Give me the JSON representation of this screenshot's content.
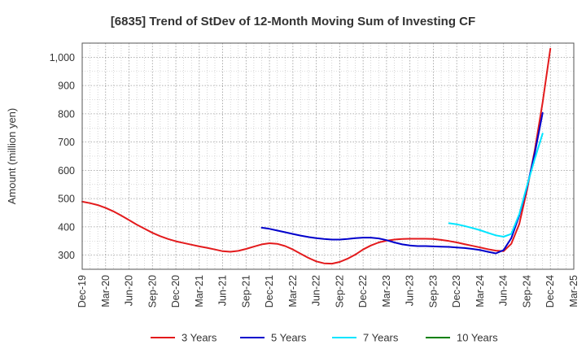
{
  "chart_data": {
    "type": "line",
    "title": "[6835]  Trend of StDev of 12-Month Moving Sum of Investing CF",
    "ylabel": "Amount (million yen)",
    "xlabel": "",
    "ylim": [
      250,
      1050
    ],
    "yticks": [
      300,
      400,
      500,
      600,
      700,
      800,
      900,
      1000
    ],
    "ytick_labels": [
      "300",
      "400",
      "500",
      "600",
      "700",
      "800",
      "900",
      "1,000"
    ],
    "categories": [
      "Dec-19",
      "Mar-20",
      "Jun-20",
      "Sep-20",
      "Dec-20",
      "Mar-21",
      "Jun-21",
      "Sep-21",
      "Dec-21",
      "Mar-22",
      "Jun-22",
      "Sep-22",
      "Dec-22",
      "Mar-23",
      "Jun-23",
      "Sep-23",
      "Dec-23",
      "Mar-24",
      "Jun-24",
      "Sep-24",
      "Dec-24",
      "Mar-25"
    ],
    "grid": true,
    "legend_position": "bottom",
    "series": [
      {
        "name": "3 Years",
        "color": "#e31a1c",
        "points": [
          [
            0,
            489
          ],
          [
            0.33,
            484
          ],
          [
            0.67,
            477
          ],
          [
            1,
            467
          ],
          [
            1.33,
            455
          ],
          [
            1.67,
            440
          ],
          [
            2,
            424
          ],
          [
            2.33,
            408
          ],
          [
            2.67,
            393
          ],
          [
            3,
            379
          ],
          [
            3.33,
            367
          ],
          [
            3.67,
            357
          ],
          [
            4,
            349
          ],
          [
            4.33,
            343
          ],
          [
            4.67,
            337
          ],
          [
            5,
            331
          ],
          [
            5.33,
            326
          ],
          [
            5.67,
            320
          ],
          [
            6,
            314
          ],
          [
            6.33,
            312
          ],
          [
            6.67,
            315
          ],
          [
            7,
            322
          ],
          [
            7.33,
            330
          ],
          [
            7.67,
            338
          ],
          [
            8,
            342
          ],
          [
            8.33,
            340
          ],
          [
            8.67,
            332
          ],
          [
            9,
            320
          ],
          [
            9.33,
            305
          ],
          [
            9.67,
            290
          ],
          [
            10,
            278
          ],
          [
            10.33,
            271
          ],
          [
            10.67,
            270
          ],
          [
            11,
            276
          ],
          [
            11.33,
            287
          ],
          [
            11.67,
            302
          ],
          [
            12,
            320
          ],
          [
            12.33,
            334
          ],
          [
            12.67,
            345
          ],
          [
            13,
            351
          ],
          [
            13.33,
            355
          ],
          [
            13.67,
            357
          ],
          [
            14,
            358
          ],
          [
            14.33,
            358
          ],
          [
            14.67,
            358
          ],
          [
            15,
            357
          ],
          [
            15.33,
            354
          ],
          [
            15.67,
            350
          ],
          [
            16,
            345
          ],
          [
            16.33,
            339
          ],
          [
            16.67,
            333
          ],
          [
            17,
            327
          ],
          [
            17.33,
            321
          ],
          [
            17.67,
            316
          ],
          [
            18,
            314
          ],
          [
            18.33,
            340
          ],
          [
            18.67,
            410
          ],
          [
            19,
            530
          ],
          [
            19.33,
            670
          ],
          [
            19.67,
            840
          ],
          [
            20,
            1030
          ]
        ]
      },
      {
        "name": "5 Years",
        "color": "#0000cc",
        "points": [
          [
            7.67,
            397
          ],
          [
            8,
            393
          ],
          [
            8.33,
            387
          ],
          [
            8.67,
            381
          ],
          [
            9,
            375
          ],
          [
            9.33,
            369
          ],
          [
            9.67,
            364
          ],
          [
            10,
            360
          ],
          [
            10.33,
            357
          ],
          [
            10.67,
            355
          ],
          [
            11,
            355
          ],
          [
            11.33,
            357
          ],
          [
            11.67,
            360
          ],
          [
            12,
            362
          ],
          [
            12.33,
            362
          ],
          [
            12.67,
            359
          ],
          [
            13,
            353
          ],
          [
            13.33,
            345
          ],
          [
            13.67,
            338
          ],
          [
            14,
            334
          ],
          [
            14.33,
            332
          ],
          [
            14.67,
            332
          ],
          [
            15,
            331
          ],
          [
            15.33,
            330
          ],
          [
            15.67,
            329
          ],
          [
            16,
            327
          ],
          [
            16.33,
            325
          ],
          [
            16.67,
            322
          ],
          [
            17,
            318
          ],
          [
            17.33,
            312
          ],
          [
            17.67,
            306
          ],
          [
            18,
            318
          ],
          [
            18.33,
            360
          ],
          [
            18.67,
            440
          ],
          [
            19,
            540
          ],
          [
            19.33,
            660
          ],
          [
            19.67,
            803
          ]
        ]
      },
      {
        "name": "7 Years",
        "color": "#00e5ff",
        "points": [
          [
            15.67,
            413
          ],
          [
            16,
            409
          ],
          [
            16.33,
            403
          ],
          [
            16.67,
            396
          ],
          [
            17,
            388
          ],
          [
            17.33,
            379
          ],
          [
            17.67,
            370
          ],
          [
            18,
            365
          ],
          [
            18.33,
            375
          ],
          [
            18.67,
            445
          ],
          [
            19,
            545
          ],
          [
            19.33,
            640
          ],
          [
            19.67,
            730
          ]
        ]
      },
      {
        "name": "10 Years",
        "color": "#008000",
        "points": []
      }
    ]
  }
}
